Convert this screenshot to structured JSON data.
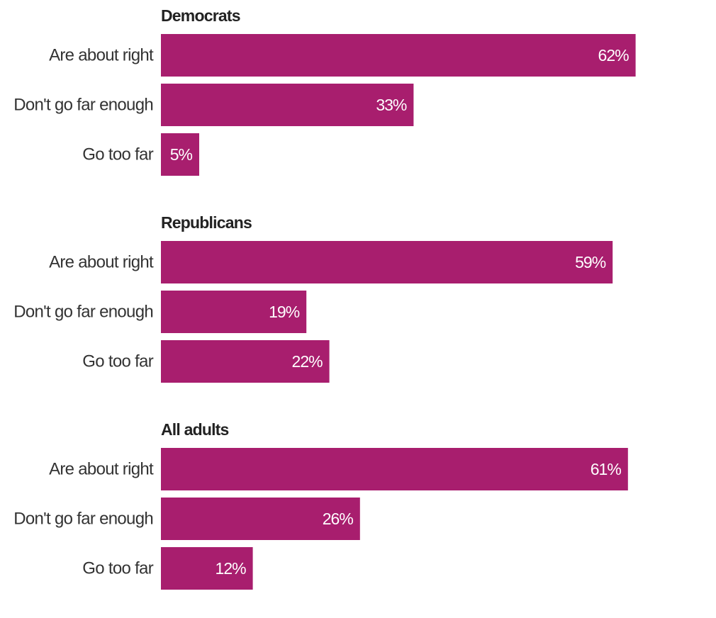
{
  "chart_data": {
    "type": "bar",
    "orientation": "horizontal",
    "categories": [
      "Are about right",
      "Don't go far enough",
      "Go too far"
    ],
    "unit": "%",
    "value_suffix": "%",
    "bar_color": "#a81e6e",
    "groups": [
      {
        "name": "Democrats",
        "values": [
          62,
          33,
          5
        ]
      },
      {
        "name": "Republicans",
        "values": [
          59,
          19,
          22
        ]
      },
      {
        "name": "All adults",
        "values": [
          61,
          26,
          12
        ]
      }
    ],
    "xlim": [
      0,
      100
    ],
    "grid": false,
    "legend": "none"
  }
}
